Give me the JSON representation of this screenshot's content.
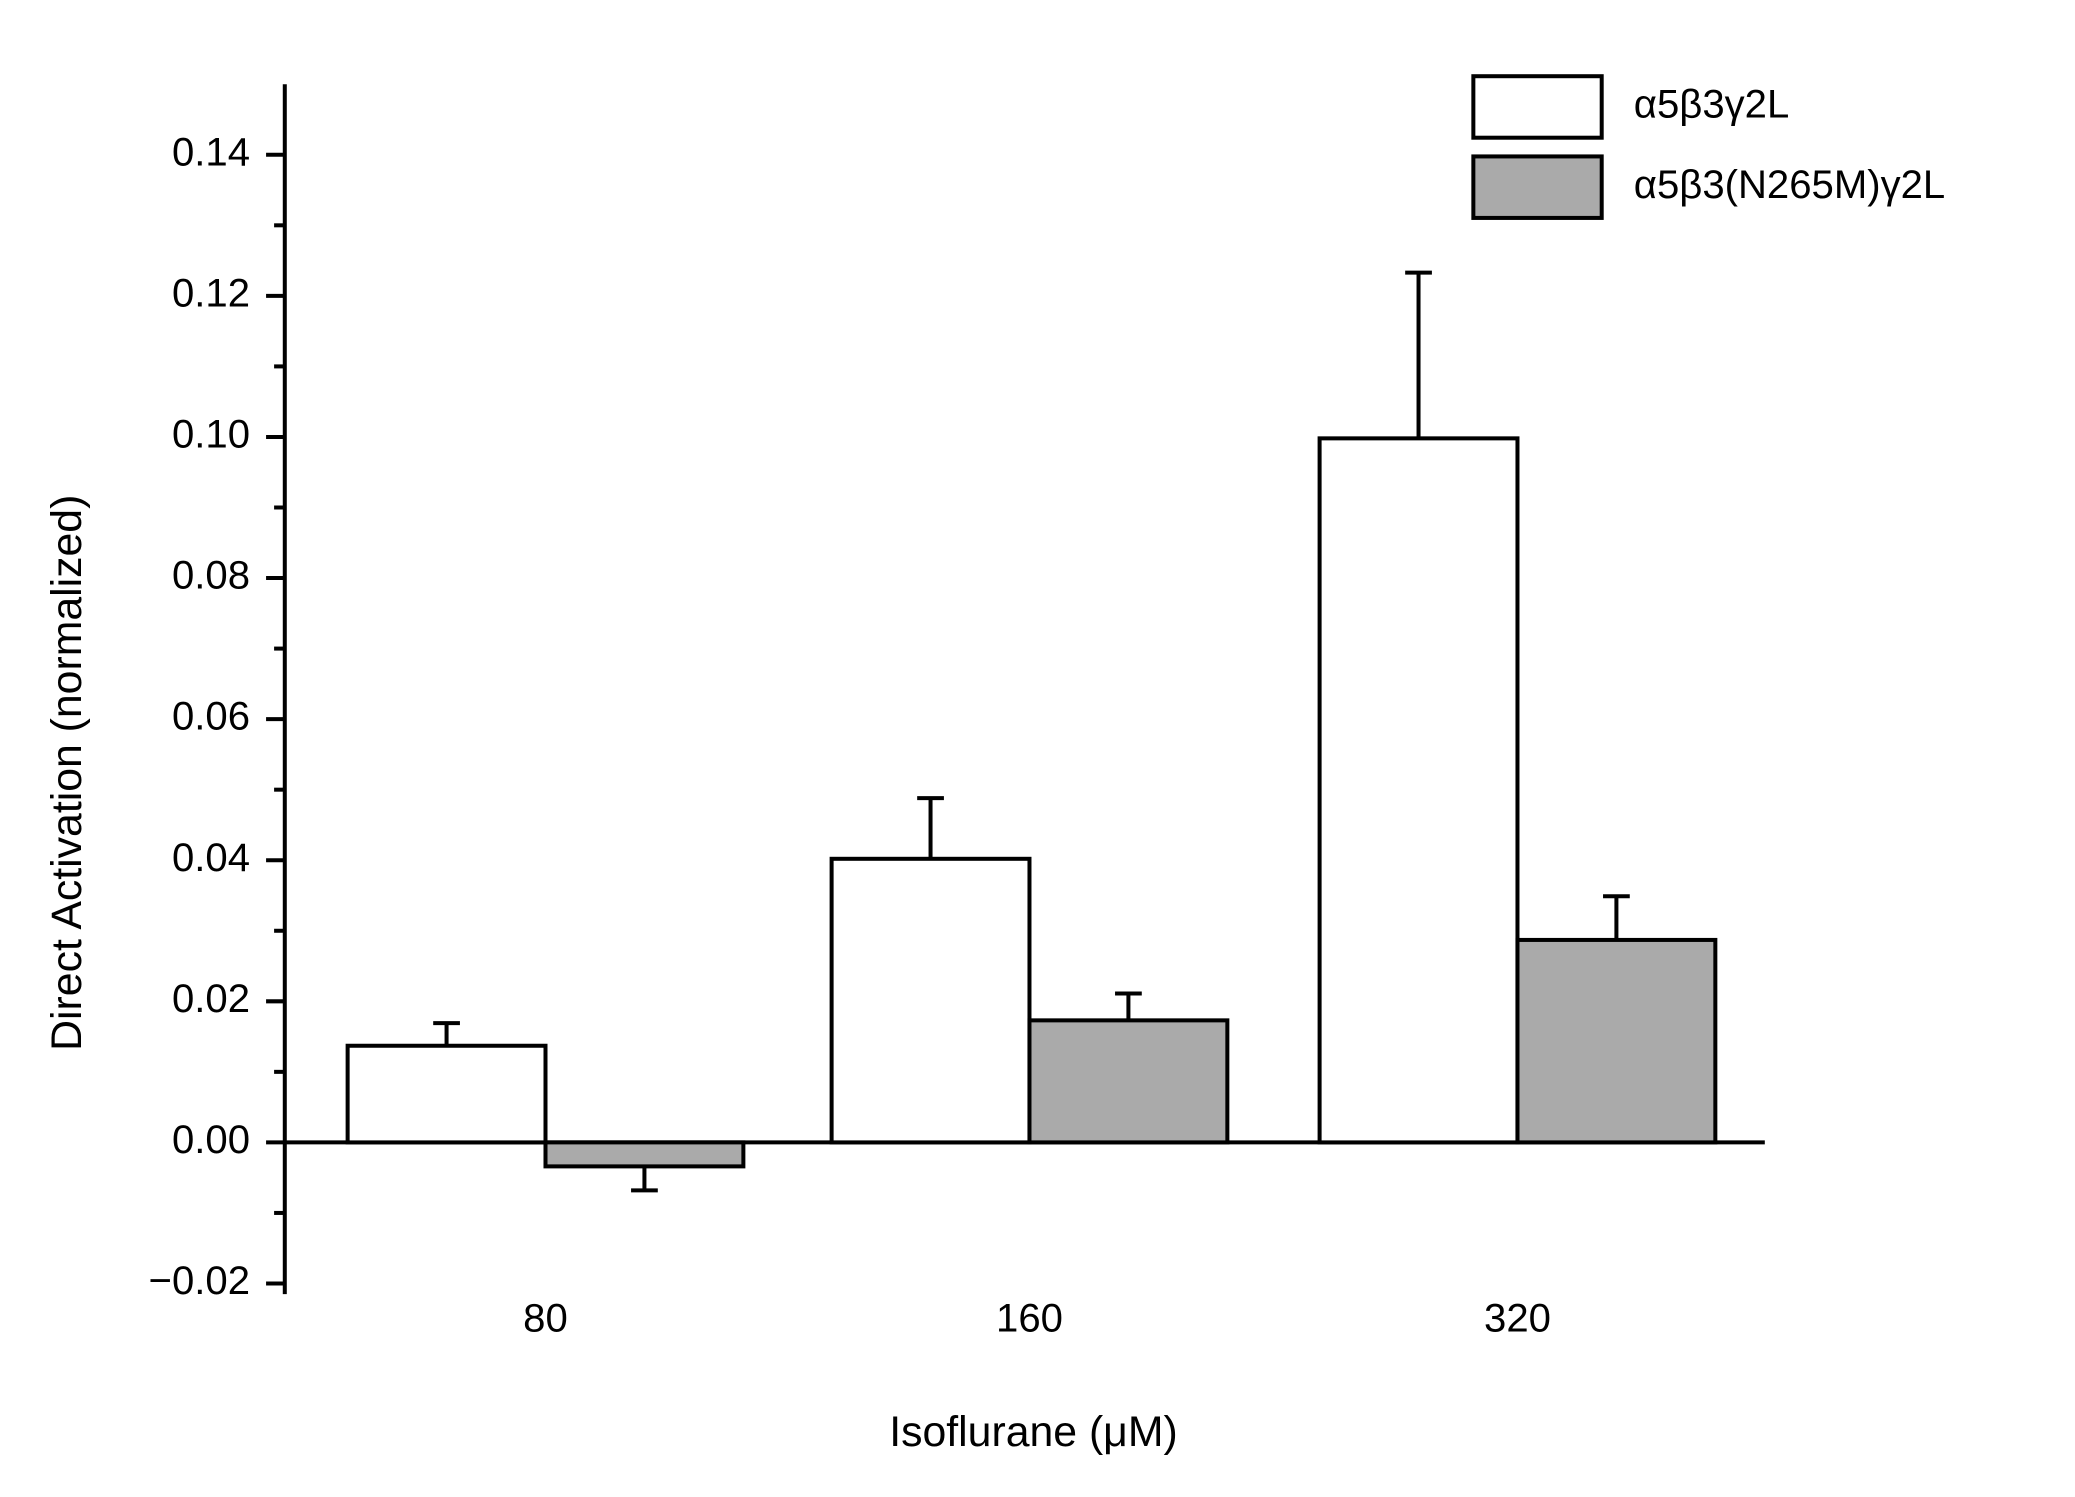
{
  "chart_data": {
    "type": "bar",
    "x_label": "Isoflurane (μM)",
    "y_label": "Direct Activation (normalized)",
    "categories": [
      "80",
      "160",
      "320"
    ],
    "series": [
      {
        "name": "α5β3γ2L",
        "color": "#ffffff",
        "values": [
          0.0137,
          0.0402,
          0.0998
        ],
        "errors": [
          0.0032,
          0.0086,
          0.0235
        ]
      },
      {
        "name": "α5β3(N265M)γ2L",
        "color": "#aaaaaa",
        "values": [
          -0.0034,
          0.0173,
          0.0287
        ],
        "errors": [
          0.0034,
          0.0038,
          0.0062
        ]
      }
    ],
    "ylim": [
      -0.02,
      0.15
    ],
    "yticks": [
      {
        "value": -0.02,
        "label": "−0.02"
      },
      {
        "value": 0,
        "label": "0.00"
      },
      0.02,
      0.04,
      0.06,
      0.08,
      {
        "value": 0.1,
        "label": "0.10"
      },
      0.12,
      0.14
    ],
    "minor_yticks": [
      -0.01,
      0.01,
      0.03,
      0.05,
      0.07,
      0.09,
      0.11,
      0.13
    ],
    "legend": "upper right",
    "grid": false
  }
}
